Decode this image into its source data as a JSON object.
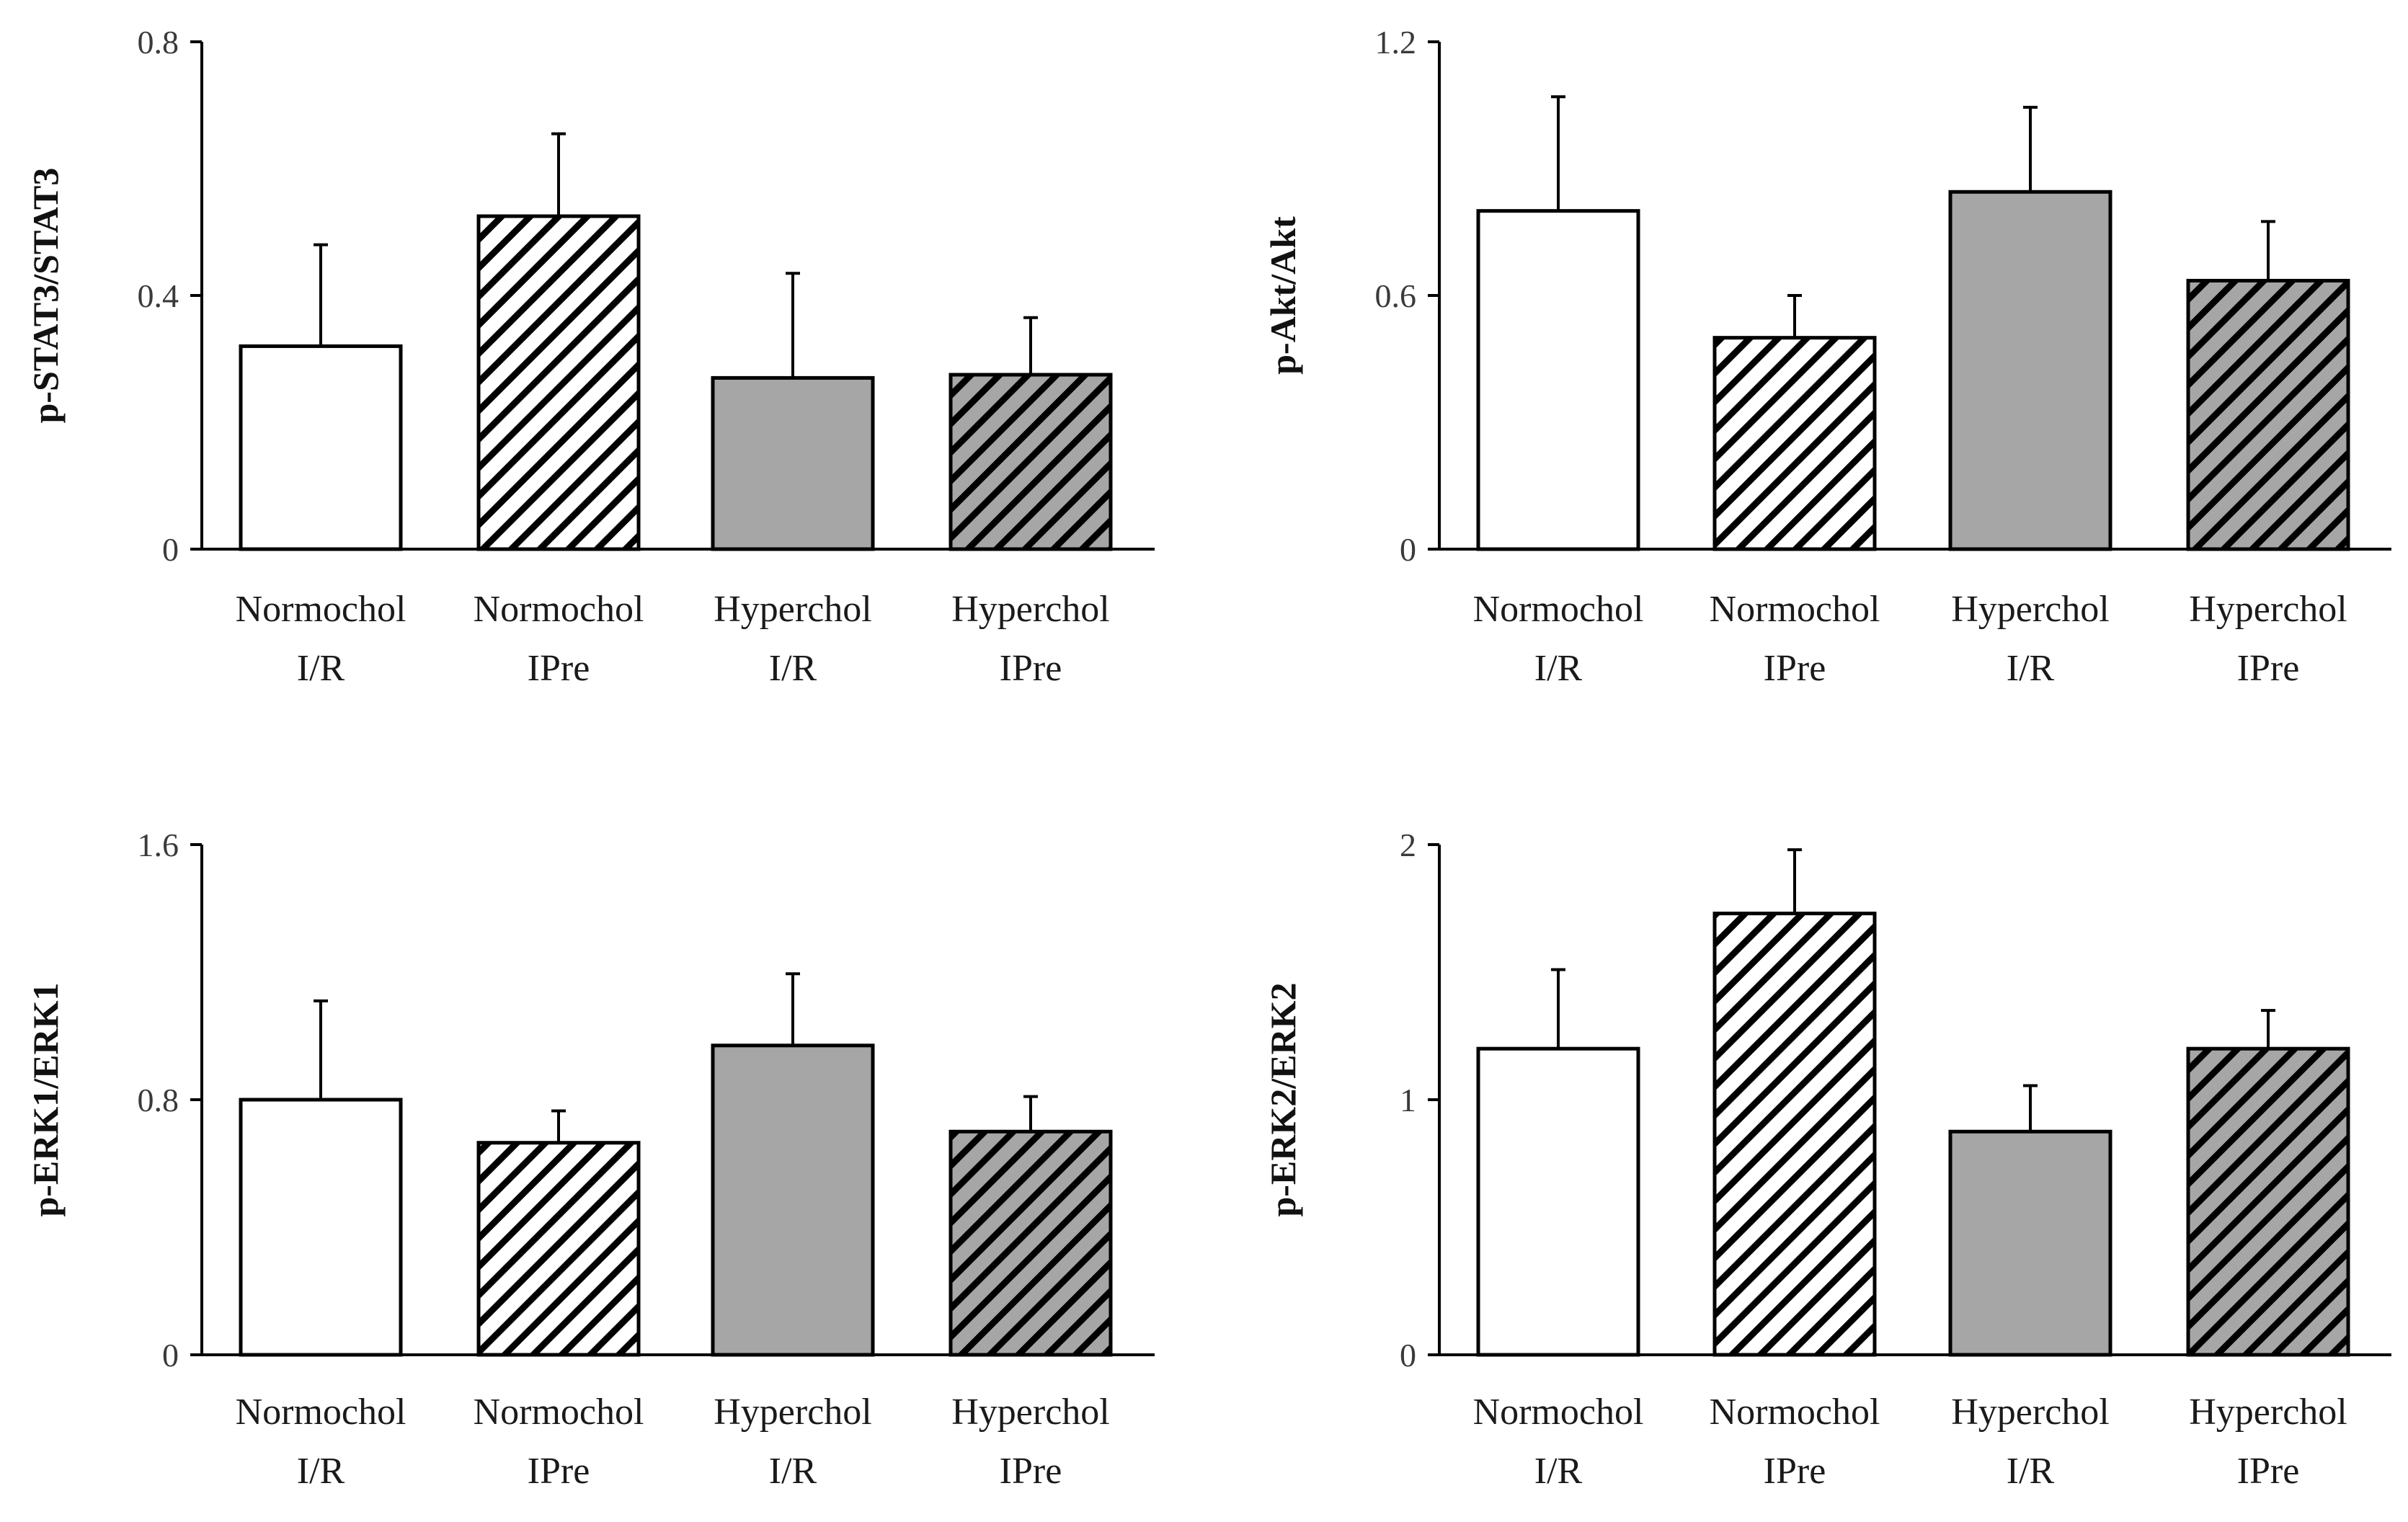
{
  "chart_data": [
    {
      "type": "bar",
      "ylabel": "p-STAT3/STAT3",
      "ylim": [
        0,
        0.8
      ],
      "yticks": [
        "0",
        "0.4",
        "0.8"
      ],
      "ytick_values": [
        0,
        0.4,
        0.8
      ],
      "categories": [
        [
          "Normochol",
          "I/R"
        ],
        [
          "Normochol",
          "IPre"
        ],
        [
          "Hyperchol",
          "I/R"
        ],
        [
          "Hyperchol",
          "IPre"
        ]
      ],
      "values": [
        0.32,
        0.525,
        0.27,
        0.275
      ],
      "errors": [
        0.16,
        0.13,
        0.165,
        0.09
      ]
    },
    {
      "type": "bar",
      "ylabel": "p-Akt/Akt",
      "ylim": [
        0,
        1.2
      ],
      "yticks": [
        "0",
        "0.6",
        "1.2"
      ],
      "ytick_values": [
        0,
        0.6,
        1.2
      ],
      "categories": [
        [
          "Normochol",
          "I/R"
        ],
        [
          "Normochol",
          "IPre"
        ],
        [
          "Hyperchol",
          "I/R"
        ],
        [
          "Hyperchol",
          "IPre"
        ]
      ],
      "values": [
        0.8,
        0.5,
        0.845,
        0.635
      ],
      "errors": [
        0.27,
        0.1,
        0.2,
        0.14
      ]
    },
    {
      "type": "bar",
      "ylabel": "p-ERK1/ERK1",
      "ylim": [
        0,
        1.6
      ],
      "yticks": [
        "0",
        "0.8",
        "1.6"
      ],
      "ytick_values": [
        0,
        0.8,
        1.6
      ],
      "categories": [
        [
          "Normochol",
          "I/R"
        ],
        [
          "Normochol",
          "IPre"
        ],
        [
          "Hyperchol",
          "I/R"
        ],
        [
          "Hyperchol",
          "IPre"
        ]
      ],
      "values": [
        0.8,
        0.665,
        0.97,
        0.7
      ],
      "errors": [
        0.31,
        0.1,
        0.225,
        0.11
      ]
    },
    {
      "type": "bar",
      "ylabel": "p-ERK2/ERK2",
      "ylim": [
        0,
        2
      ],
      "yticks": [
        "0",
        "1",
        "2"
      ],
      "ytick_values": [
        0,
        1,
        2
      ],
      "categories": [
        [
          "Normochol",
          "I/R"
        ],
        [
          "Normochol",
          "IPre"
        ],
        [
          "Hyperchol",
          "I/R"
        ],
        [
          "Hyperchol",
          "IPre"
        ]
      ],
      "values": [
        1.2,
        1.73,
        0.875,
        1.2
      ],
      "errors": [
        0.31,
        0.25,
        0.18,
        0.15
      ]
    }
  ],
  "bar_styles": [
    {
      "fill": "white",
      "color": "#ffffff"
    },
    {
      "fill": "hatch",
      "color": "#ffffff"
    },
    {
      "fill": "solid",
      "color": "#a6a6a6"
    },
    {
      "fill": "hatch",
      "color": "#a6a6a6"
    }
  ]
}
